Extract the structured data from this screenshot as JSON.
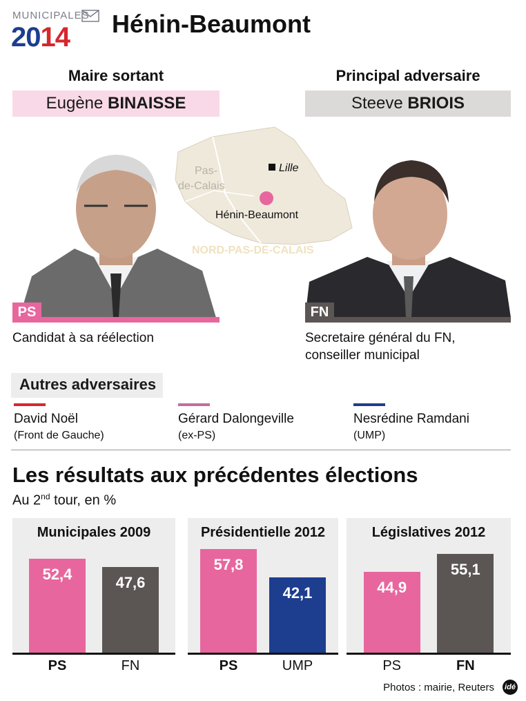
{
  "header": {
    "logo_top": "MUNICIPALES",
    "logo_year_a": "20",
    "logo_year_b": "14",
    "city": "Hénin-Beaumont"
  },
  "candidates": {
    "incumbent": {
      "role": "Maire sortant",
      "first_name": "Eugène",
      "last_name": "BINAISSE",
      "party": "PS",
      "caption": "Candidat à sa réélection"
    },
    "challenger": {
      "role": "Principal adversaire",
      "first_name": "Steeve",
      "last_name": "BRIOIS",
      "party": "FN",
      "caption_line1": "Secretaire général du FN,",
      "caption_line2": "conseiller municipal"
    }
  },
  "map": {
    "region": "NORD-PAS-DE-CALAIS",
    "department_line1": "Pas-",
    "department_line2": "de-Calais",
    "city_label": "Lille",
    "town_label": "Hénin-Beaumont"
  },
  "others": {
    "title": "Autres adversaires",
    "items": [
      {
        "name": "David Noël",
        "party": "(Front de Gauche)",
        "color": "#d6262e"
      },
      {
        "name": "Gérard Dalongeville",
        "party": "(ex-PS)",
        "color": "#c46c9b"
      },
      {
        "name": "Nesrédine Ramdani",
        "party": "(UMP)",
        "color": "#1d3d8f"
      }
    ]
  },
  "results": {
    "title": "Les résultats aux précédentes élections",
    "subtitle_a": "Au 2",
    "subtitle_sup": "nd",
    "subtitle_b": " tour, en %"
  },
  "chart_data": {
    "type": "bar",
    "unit": "%",
    "panels": [
      {
        "title": "Municipales 2009",
        "bars": [
          {
            "label": "PS",
            "value": 52.4,
            "display": "52,4",
            "bold": true,
            "color": "#e8669e"
          },
          {
            "label": "FN",
            "value": 47.6,
            "display": "47,6",
            "bold": false,
            "color": "#5b5654"
          }
        ]
      },
      {
        "title": "Présidentielle 2012",
        "bars": [
          {
            "label": "PS",
            "value": 57.8,
            "display": "57,8",
            "bold": true,
            "color": "#e8669e"
          },
          {
            "label": "UMP",
            "value": 42.1,
            "display": "42,1",
            "bold": false,
            "color": "#1d3d8f"
          }
        ]
      },
      {
        "title": "Législatives 2012",
        "bars": [
          {
            "label": "PS",
            "value": 44.9,
            "display": "44,9",
            "bold": false,
            "color": "#e8669e"
          },
          {
            "label": "FN",
            "value": 55.1,
            "display": "55,1",
            "bold": true,
            "color": "#5b5654"
          }
        ]
      }
    ]
  },
  "footer": {
    "credit": "Photos : mairie, Reuters",
    "brand": "idé"
  },
  "colors": {
    "ps_pink": "#e8669e",
    "fn_grey": "#5b5654",
    "name_pink_bg": "#f9d9e7",
    "name_grey_bg": "#dcdad9"
  }
}
